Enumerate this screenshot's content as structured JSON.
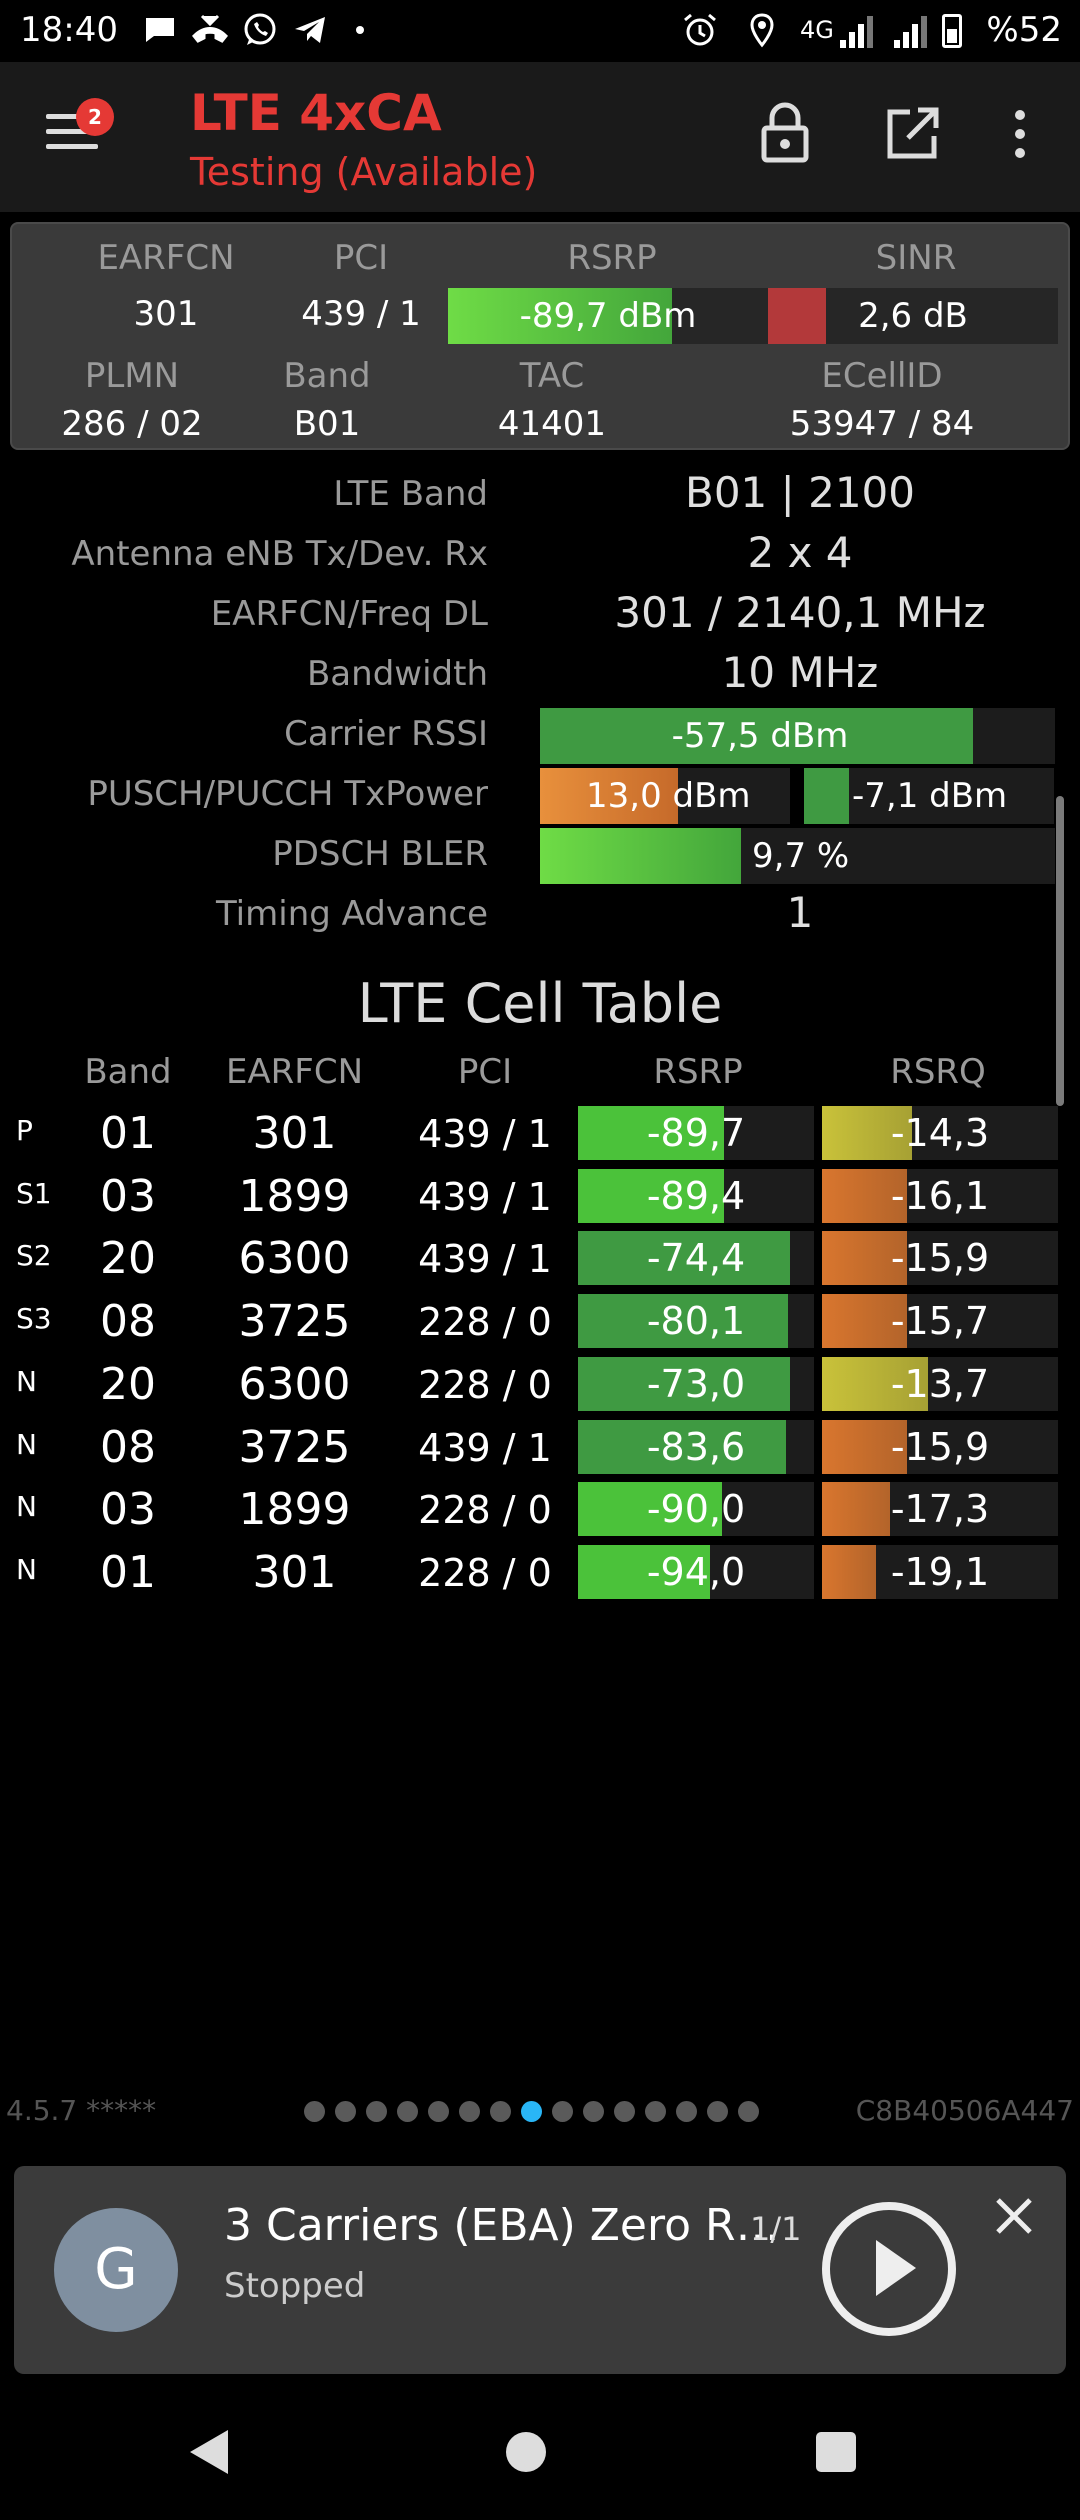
{
  "status_bar": {
    "time": "18:40",
    "network": "4G",
    "battery": "%52",
    "icons": [
      "chat-icon",
      "missed-call-icon",
      "whatsapp-icon",
      "telegram-icon",
      "dot-icon",
      "alarm-icon",
      "location-icon"
    ]
  },
  "app_bar": {
    "title": "LTE 4xCA",
    "subtitle": "Testing (Available)",
    "badge": "2",
    "accent": "#e53935"
  },
  "summary": {
    "labels": {
      "earfcn": "EARFCN",
      "pci": "PCI",
      "rsrp": "RSRP",
      "sinr": "SINR",
      "plmn": "PLMN",
      "band": "Band",
      "tac": "TAC",
      "ecellid": "ECellID"
    },
    "earfcn": "301",
    "pci": "439 / 1",
    "rsrp": "-89,7 dBm",
    "rsrp_level": 0.7,
    "sinr": "2,6 dB",
    "sinr_level": 0.2,
    "plmn": "286 / 02",
    "band": "B01",
    "tac": "41401",
    "ecellid": "53947 / 84"
  },
  "details": {
    "lte_band": {
      "label": "LTE Band",
      "value": "B01 | 2100"
    },
    "antenna": {
      "label": "Antenna eNB Tx/Dev. Rx",
      "value": "2 x 4"
    },
    "freq": {
      "label": "EARFCN/Freq DL",
      "value": "301 / 2140,1 MHz"
    },
    "bandwidth": {
      "label": "Bandwidth",
      "value": "10 MHz"
    },
    "rssi": {
      "label": "Carrier RSSI",
      "value": "-57,5 dBm",
      "level": 0.84
    },
    "txpower": {
      "label": "PUSCH/PUCCH TxPower",
      "pusch": "13,0 dBm",
      "pusch_level": 0.55,
      "pucch": "-7,1 dBm",
      "pucch_level": 0.18
    },
    "bler": {
      "label": "PDSCH BLER",
      "value": "9,7 %",
      "level": 0.39
    },
    "timing_advance": {
      "label": "Timing Advance",
      "value": "1"
    }
  },
  "cell_table": {
    "title": "LTE Cell Table",
    "headers": [
      "Band",
      "EARFCN",
      "PCI",
      "RSRP",
      "RSRQ"
    ],
    "rows": [
      {
        "type": "P",
        "band": "01",
        "earfcn": "301",
        "pci": "439 / 1",
        "rsrp": "-89,7",
        "rsrp_level": 0.62,
        "rsrq": "-14,3",
        "rsrq_level": 0.38,
        "rsrp_color": "#4bc23a",
        "rsrq_color": "#c9c23a"
      },
      {
        "type": "S1",
        "band": "03",
        "earfcn": "1899",
        "pci": "439 / 1",
        "rsrp": "-89,4",
        "rsrp_level": 0.62,
        "rsrq": "-16,1",
        "rsrq_level": 0.36,
        "rsrp_color": "#4bc23a",
        "rsrq_color": "#d9762e"
      },
      {
        "type": "S2",
        "band": "20",
        "earfcn": "6300",
        "pci": "439 / 1",
        "rsrp": "-74,4",
        "rsrp_level": 0.9,
        "rsrq": "-15,9",
        "rsrq_level": 0.36,
        "rsrp_color": "#3f9a42",
        "rsrq_color": "#d9762e"
      },
      {
        "type": "S3",
        "band": "08",
        "earfcn": "3725",
        "pci": "228 / 0",
        "rsrp": "-80,1",
        "rsrp_level": 0.89,
        "rsrq": "-15,7",
        "rsrq_level": 0.36,
        "rsrp_color": "#3f9a42",
        "rsrq_color": "#d9762e"
      },
      {
        "type": "N",
        "band": "20",
        "earfcn": "6300",
        "pci": "228 / 0",
        "rsrp": "-73,0",
        "rsrp_level": 0.9,
        "rsrq": "-13,7",
        "rsrq_level": 0.45,
        "rsrp_color": "#3f9a42",
        "rsrq_color": "#c9c23a"
      },
      {
        "type": "N",
        "band": "08",
        "earfcn": "3725",
        "pci": "439 / 1",
        "rsrp": "-83,6",
        "rsrp_level": 0.88,
        "rsrq": "-15,9",
        "rsrq_level": 0.36,
        "rsrp_color": "#3f9a42",
        "rsrq_color": "#d9762e"
      },
      {
        "type": "N",
        "band": "03",
        "earfcn": "1899",
        "pci": "228 / 0",
        "rsrp": "-90,0",
        "rsrp_level": 0.61,
        "rsrq": "-17,3",
        "rsrq_level": 0.29,
        "rsrp_color": "#4bc23a",
        "rsrq_color": "#d9762e"
      },
      {
        "type": "N",
        "band": "01",
        "earfcn": "301",
        "pci": "228 / 0",
        "rsrp": "-94,0",
        "rsrp_level": 0.56,
        "rsrq": "-19,1",
        "rsrq_level": 0.23,
        "rsrp_color": "#4bc23a",
        "rsrq_color": "#d9762e"
      }
    ]
  },
  "footer": {
    "version": "4.5.7 *****",
    "device_id": "C8B40506A447",
    "page_count": 15,
    "active_page": 8
  },
  "media": {
    "avatar": "G",
    "title": "3 Carriers (EBA) Zero R…",
    "count": "1/1",
    "status": "Stopped"
  }
}
